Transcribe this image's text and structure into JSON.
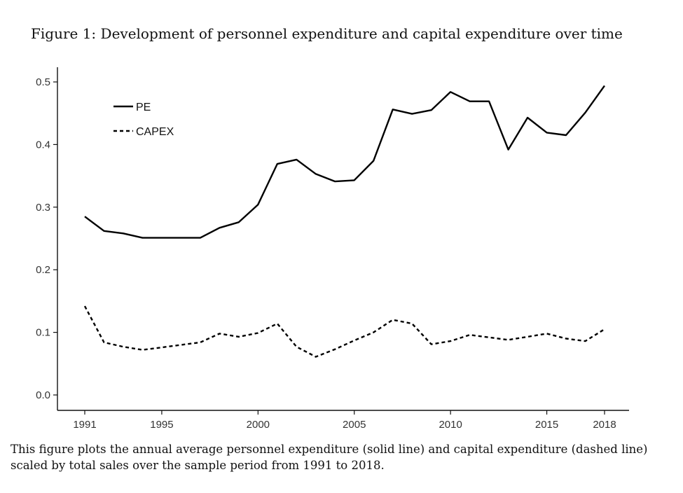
{
  "title": "Figure 1: Development of personnel expenditure and capital expenditure over time",
  "caption": "This figure plots the annual average personnel expenditure (solid line) and capital expenditure (dashed line) scaled by total sales over the sample period from 1991 to 2018.",
  "chart_data": {
    "type": "line",
    "title": "Figure 1: Development of personnel expenditure and capital expenditure over time",
    "xlabel": "",
    "ylabel": "",
    "xlim": [
      1991,
      2018
    ],
    "ylim": [
      0.0,
      0.5
    ],
    "x_ticks": [
      "1991",
      "1995",
      "2000",
      "2005",
      "2010",
      "2015",
      "2018"
    ],
    "y_ticks": [
      "0.0",
      "0.1",
      "0.2",
      "0.3",
      "0.4",
      "0.5"
    ],
    "grid": false,
    "legend_position": "top-left",
    "x": [
      1991,
      1992,
      1993,
      1994,
      1995,
      1996,
      1997,
      1998,
      1999,
      2000,
      2001,
      2002,
      2003,
      2004,
      2005,
      2006,
      2007,
      2008,
      2009,
      2010,
      2011,
      2012,
      2013,
      2014,
      2015,
      2016,
      2017,
      2018
    ],
    "series": [
      {
        "name": "PE",
        "style": "solid",
        "values": [
          0.285,
          0.262,
          0.258,
          0.251,
          0.251,
          0.251,
          0.251,
          0.267,
          0.276,
          0.304,
          0.369,
          0.376,
          0.353,
          0.341,
          0.343,
          0.374,
          0.456,
          0.449,
          0.455,
          0.484,
          0.469,
          0.469,
          0.392,
          0.443,
          0.419,
          0.415,
          0.451,
          0.494
        ]
      },
      {
        "name": "CAPEX",
        "style": "dashed",
        "values": [
          0.142,
          0.084,
          0.077,
          0.072,
          0.076,
          0.08,
          0.084,
          0.098,
          0.093,
          0.099,
          0.114,
          0.077,
          0.061,
          0.073,
          0.087,
          0.1,
          0.12,
          0.114,
          0.081,
          0.086,
          0.096,
          0.092,
          0.088,
          0.093,
          0.098,
          0.09,
          0.086,
          0.105
        ]
      }
    ]
  }
}
